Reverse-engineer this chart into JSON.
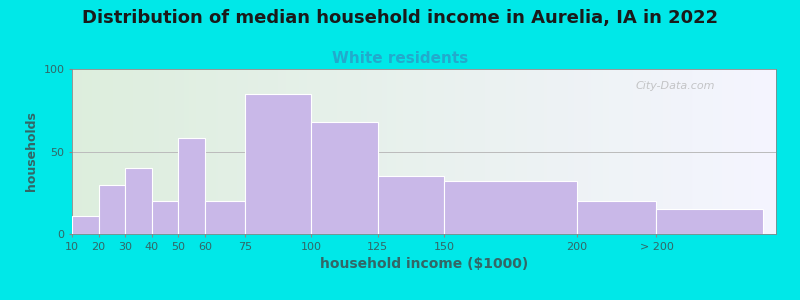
{
  "title": "Distribution of median household income in Aurelia, IA in 2022",
  "subtitle": "White residents",
  "xlabel": "household income ($1000)",
  "ylabel": "households",
  "title_fontsize": 13,
  "subtitle_fontsize": 11,
  "subtitle_color": "#22aacc",
  "ylabel_color": "#336666",
  "xlabel_color": "#336666",
  "bar_color": "#c9b8e8",
  "bar_edge_color": "#ffffff",
  "background_outer": "#00e8e8",
  "ylim": [
    0,
    100
  ],
  "yticks": [
    0,
    50,
    100
  ],
  "watermark": "City-Data.com",
  "bar_left_edges": [
    10,
    20,
    30,
    40,
    50,
    60,
    75,
    100,
    125,
    150,
    200,
    230
  ],
  "bar_widths": [
    10,
    10,
    10,
    10,
    10,
    15,
    25,
    25,
    25,
    50,
    30,
    40
  ],
  "bar_values": [
    11,
    30,
    40,
    20,
    58,
    20,
    85,
    68,
    35,
    32,
    20,
    15
  ],
  "xtick_positions": [
    10,
    20,
    30,
    40,
    50,
    60,
    75,
    100,
    125,
    150,
    200,
    230
  ],
  "xtick_labels": [
    "10",
    "20",
    "30",
    "40",
    "50",
    "60",
    "75",
    "100",
    "125",
    "150",
    "200",
    "> 200"
  ],
  "xlim": [
    10,
    275
  ]
}
